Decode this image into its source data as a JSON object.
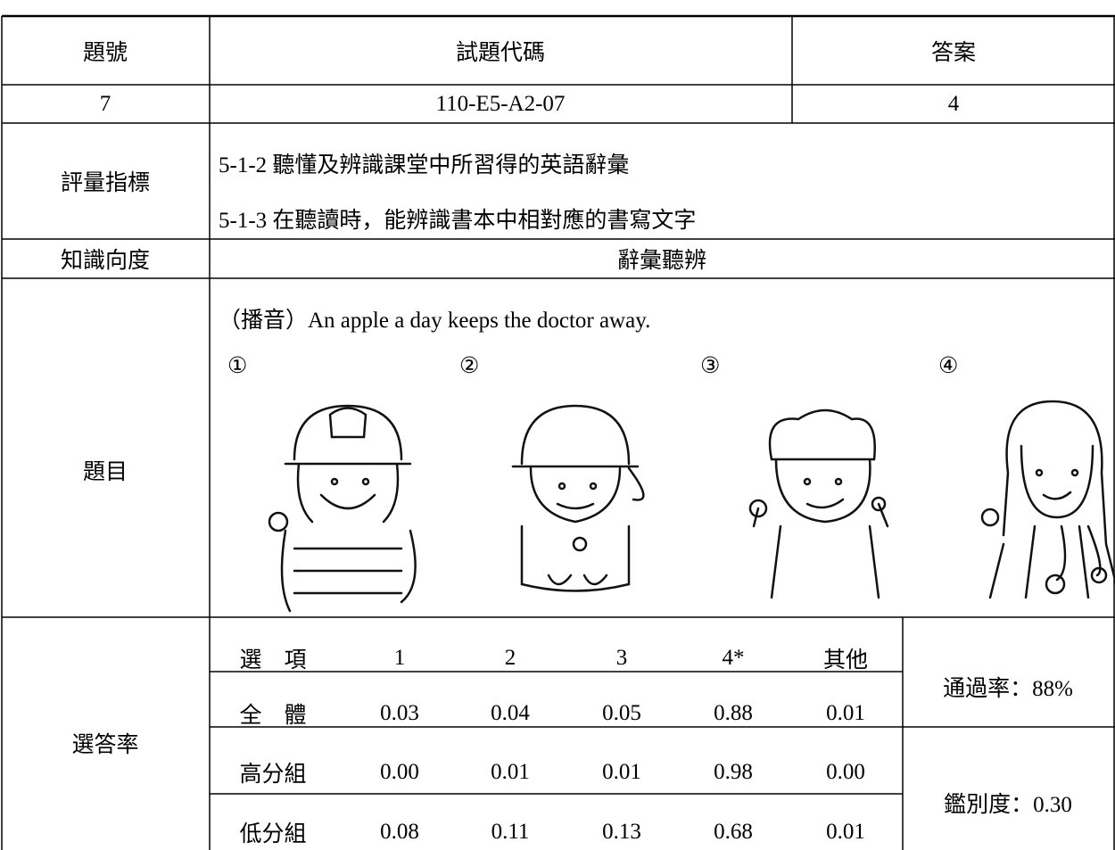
{
  "header": {
    "columns": [
      "題號",
      "試題代碼",
      "答案"
    ]
  },
  "item": {
    "number": "7",
    "code": "110-E5-A2-07",
    "answer": "4"
  },
  "indicators": {
    "label": "評量指標",
    "items": [
      "5-1-2 聽懂及辨識課堂中所習得的英語辭彙",
      "5-1-3 在聽讀時，能辨識書本中相對應的書寫文字"
    ]
  },
  "dimension": {
    "label": "知識向度",
    "value": "辭彙聽辨"
  },
  "question": {
    "label": "題目",
    "prompt": "（播音）An apple a day keeps the doctor away.",
    "options": [
      "①",
      "②",
      "③",
      "④"
    ]
  },
  "rates": {
    "label": "選答率",
    "table": {
      "header": [
        "選　項",
        "1",
        "2",
        "3",
        "4*",
        "其他"
      ],
      "rows": [
        [
          "全　體",
          "0.03",
          "0.04",
          "0.05",
          "0.88",
          "0.01"
        ],
        [
          "高分組",
          "0.00",
          "0.01",
          "0.01",
          "0.98",
          "0.00"
        ],
        [
          "低分組",
          "0.08",
          "0.11",
          "0.13",
          "0.68",
          "0.01"
        ]
      ]
    },
    "pass_rate": "通過率：88%",
    "discrimination": "鑑別度：0.30"
  }
}
